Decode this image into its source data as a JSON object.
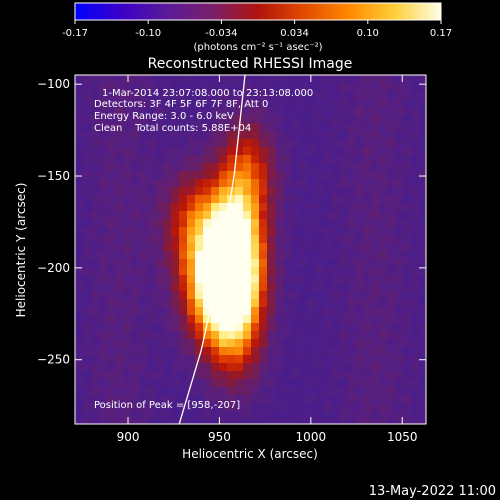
{
  "colorbar": {
    "ticks": [
      "-0.17",
      "-0.10",
      "-0.034",
      "0.034",
      "0.10",
      "0.17"
    ],
    "label": "(photons cm⁻² s⁻¹ asec⁻²)",
    "gradient": [
      "#0000ff",
      "#3b00c8",
      "#5a1a9a",
      "#7a1f6a",
      "#b0140c",
      "#e24a00",
      "#ff8a00",
      "#ffcf3a",
      "#ffffe8"
    ]
  },
  "chart_data": {
    "type": "heatmap",
    "title": "Reconstructed RHESSI Image",
    "xlabel": "Heliocentric X (arcsec)",
    "ylabel": "Heliocentric Y (arcsec)",
    "xlim": [
      871,
      1063
    ],
    "ylim": [
      -285,
      -95
    ],
    "xticks": [
      900,
      950,
      1000,
      1050
    ],
    "yticks": [
      -100,
      -150,
      -200,
      -250
    ],
    "annotations": [
      "1-Mar-2014 23:07:08.000 to 23:13:08.000",
      "Detectors: 3F 4F 5F 6F 7F 8F, Att 0",
      "Energy Range: 3.0 - 6.0 keV",
      "Clean    Total counts: 5.88E+04"
    ],
    "peak_label": "Position of Peak = [958,-207]",
    "peak": [
      958,
      -207
    ],
    "sources": [
      {
        "x": 958,
        "y": -207,
        "amp": 1.0
      },
      {
        "x": 957,
        "y": -182,
        "amp": 0.78
      },
      {
        "x": 944,
        "y": -212,
        "amp": 0.6
      },
      {
        "x": 935,
        "y": -176,
        "amp": 0.45
      },
      {
        "x": 965,
        "y": -148,
        "amp": 0.48
      },
      {
        "x": 958,
        "y": -238,
        "amp": 0.45
      }
    ],
    "limb_curve": [
      [
        928,
        -285
      ],
      [
        940,
        -245
      ],
      [
        950,
        -200
      ],
      [
        958,
        -150
      ],
      [
        964,
        -95
      ]
    ],
    "colormap": [
      "#4a1e8a",
      "#5a1f7a",
      "#6e1e5c",
      "#8e1a2e",
      "#b8160a",
      "#de3c00",
      "#f26a00",
      "#ff9a10",
      "#ffc838",
      "#ffee80",
      "#fffff0"
    ]
  },
  "footer": {
    "timestamp": "13-May-2022 11:00"
  }
}
